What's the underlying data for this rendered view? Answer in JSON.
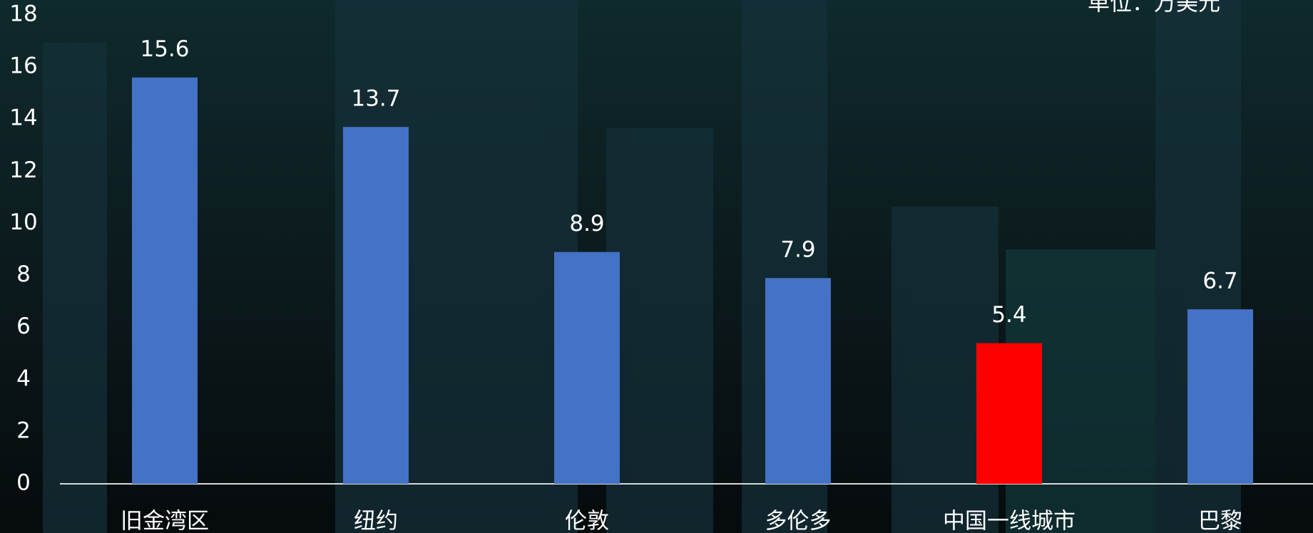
{
  "chart_data": {
    "type": "bar",
    "unit_label": "单位：万美元",
    "categories": [
      "旧金湾区",
      "纽约",
      "伦敦",
      "多伦多",
      "中国一线城市",
      "巴黎"
    ],
    "values": [
      15.6,
      13.7,
      8.9,
      7.9,
      5.4,
      6.7
    ],
    "colors": [
      "#4472c4",
      "#4472c4",
      "#4472c4",
      "#4472c4",
      "#ff0000",
      "#4472c4"
    ],
    "ylim": [
      0,
      18
    ],
    "yticks": [
      0,
      2,
      4,
      6,
      8,
      10,
      12,
      14,
      16,
      18
    ]
  }
}
